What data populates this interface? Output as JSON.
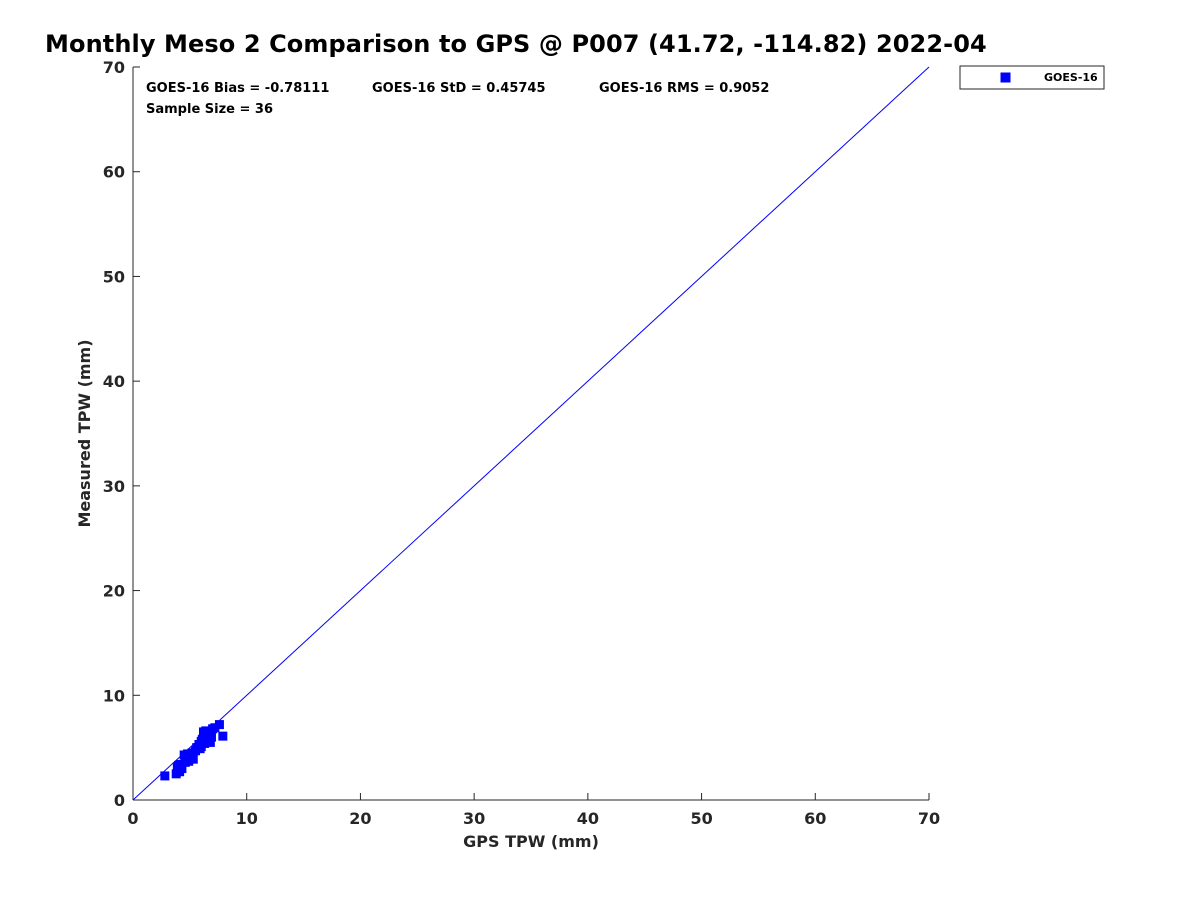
{
  "chart_data": {
    "type": "scatter",
    "title": "Monthly Meso 2 Comparison to GPS @ P007 (41.72, -114.82) 2022-04",
    "xlabel": "GPS TPW (mm)",
    "ylabel": "Measured TPW (mm)",
    "xlim": [
      0,
      70
    ],
    "ylim": [
      0,
      70
    ],
    "xticks": [
      0,
      10,
      20,
      30,
      40,
      50,
      60,
      70
    ],
    "yticks": [
      0,
      10,
      20,
      30,
      40,
      50,
      60,
      70
    ],
    "grid": false,
    "legend_position": "outside top-right",
    "reference_line": {
      "x": [
        0,
        70
      ],
      "y": [
        0,
        70
      ],
      "color": "#0000ff"
    },
    "annotations": [
      "GOES-16 Bias = -0.78111",
      "GOES-16 StD = 0.45745",
      "GOES-16 RMS = 0.9052",
      "Sample Size = 36"
    ],
    "series": [
      {
        "name": "GOES-16",
        "color": "#0000ff",
        "marker": "square",
        "x": [
          2.8,
          3.8,
          3.9,
          4.0,
          4.1,
          4.2,
          4.3,
          4.5,
          4.6,
          4.7,
          4.8,
          4.9,
          5.0,
          5.1,
          5.2,
          5.3,
          5.5,
          5.6,
          5.8,
          5.9,
          6.0,
          6.1,
          6.2,
          6.3,
          6.3,
          6.4,
          6.5,
          6.6,
          6.7,
          6.8,
          6.9,
          7.0,
          7.2,
          7.6,
          7.9,
          6.0
        ],
        "y": [
          2.3,
          2.5,
          3.1,
          3.3,
          2.7,
          3.4,
          3.0,
          4.3,
          3.6,
          3.8,
          4.4,
          3.7,
          4.0,
          4.2,
          4.5,
          3.9,
          4.7,
          5.0,
          5.3,
          4.9,
          5.6,
          5.8,
          6.5,
          6.1,
          5.4,
          6.6,
          5.7,
          5.9,
          6.2,
          5.5,
          6.0,
          6.8,
          6.9,
          7.2,
          6.1,
          5.1
        ]
      }
    ]
  }
}
